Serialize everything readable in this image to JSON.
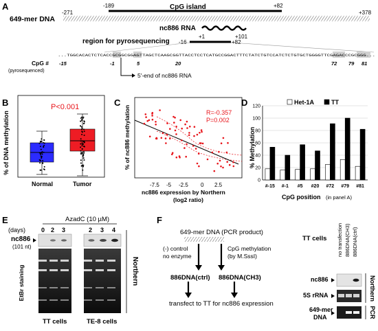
{
  "panelA": {
    "label": "A",
    "dna_name": "649-mer DNA",
    "coord_left": "-271",
    "cpg_start": "-189",
    "cpg_label": "CpG island",
    "cpg_end": "+82",
    "coord_right": "+378",
    "rna_name": "nc886 RNA",
    "rna_start": "+1",
    "rna_end": "+101",
    "pyro_label": "region for pyrosequencing",
    "pyro_start": "-16",
    "pyro_end": "+82",
    "sequence": "...TGGCACACTCTCACCGCGGCGGAGTTAGCTCAAGCGGTTACCTCCTCATGCCGGACTTTCTATCTGTCCATCTCTGTGCTGGGGTTCGAGACCCGCGGG...",
    "cpg_row_label": "CpG #",
    "cpg_row_sub": "(pyrosequenced)",
    "cpg_nums": [
      "-15",
      "-1",
      "5",
      "20",
      "72",
      "79",
      "81"
    ],
    "end_label": "5'-end of nc886 RNA"
  },
  "panelB": {
    "label": "B",
    "ylabel": "% of DNA methylation",
    "pvalue": "P<0.001",
    "categories": [
      "Normal",
      "Tumor"
    ]
  },
  "panelC": {
    "label": "C",
    "ylabel": "% of nc886 methylation",
    "xlabel1": "nc886 expression by Northern",
    "xlabel2": "(log2 ratio)",
    "R": "R=-0.357",
    "P": "P=0.002"
  },
  "panelD": {
    "label": "D",
    "ylabel": "% Methylation",
    "xlabel": "CpG position",
    "xlabel_sub": "(in panel A)"
  },
  "panelE": {
    "label": "E",
    "treatment": "AzadC (10 µM)",
    "days_label": "(days)",
    "days_tt": [
      "0",
      "2",
      "3"
    ],
    "days_te8": [
      "2",
      "3",
      "4"
    ],
    "band_label": "nc886",
    "band_sub": "(101 nt)",
    "stain_label": "EtBr staining",
    "cell1": "TT cells",
    "cell2": "TE-8 cells",
    "side_label": "Northern"
  },
  "panelF": {
    "label": "F",
    "product": "649-mer DNA (PCR product)",
    "left1": "(-) control",
    "left2": "no enzyme",
    "right1": "CpG methylation",
    "right2": "(by M.SssI)",
    "ctrl": "886DNA(ctrl)",
    "ch3": "886DNA(CH3)",
    "bottom": "transfect to TT for nc886 expression",
    "cells": "TT cells",
    "lanes": [
      "no transfection",
      "886DNA(CH3)",
      "886DNA(ctrl)"
    ],
    "row1": "nc886",
    "row2": "5S rRNA",
    "row3a": "649-mer",
    "row3b": "DNA",
    "side1": "Northern",
    "side2": "PCR"
  },
  "chart_data": [
    {
      "type": "box",
      "title": "",
      "ylabel": "% of DNA methylation",
      "categories": [
        "Normal",
        "Tumor"
      ],
      "annotation": "P<0.001",
      "colors": {
        "Normal": "#2b2bff",
        "Tumor": "#ee1c24"
      }
    },
    {
      "type": "scatter",
      "ylabel": "% of nc886 methylation",
      "xlabel": "nc886 expression by Northern (log2 ratio)",
      "xticks": [
        "-7.5",
        "-5",
        "-2.5",
        "0",
        "2.5"
      ],
      "xlim": [
        -8.5,
        4
      ],
      "annotations": [
        "R=-0.357",
        "P=0.002"
      ],
      "regression": "linear with confidence band",
      "point_color": "#e8151b"
    },
    {
      "type": "bar",
      "ylabel": "% Methylation",
      "xlabel": "CpG position (in panel A)",
      "ylim": [
        0,
        120
      ],
      "yticks": [
        0,
        20,
        40,
        60,
        80,
        100,
        120
      ],
      "categories": [
        "#-15",
        "#-1",
        "#5",
        "#20",
        "#72",
        "#79",
        "#81"
      ],
      "series": [
        {
          "name": "Het-1A",
          "color": "#ffffff",
          "values": [
            18,
            16,
            17,
            18,
            25,
            33,
            22
          ]
        },
        {
          "name": "TT",
          "color": "#000000",
          "values": [
            53,
            40,
            57,
            47,
            91,
            100,
            82
          ]
        }
      ]
    }
  ]
}
